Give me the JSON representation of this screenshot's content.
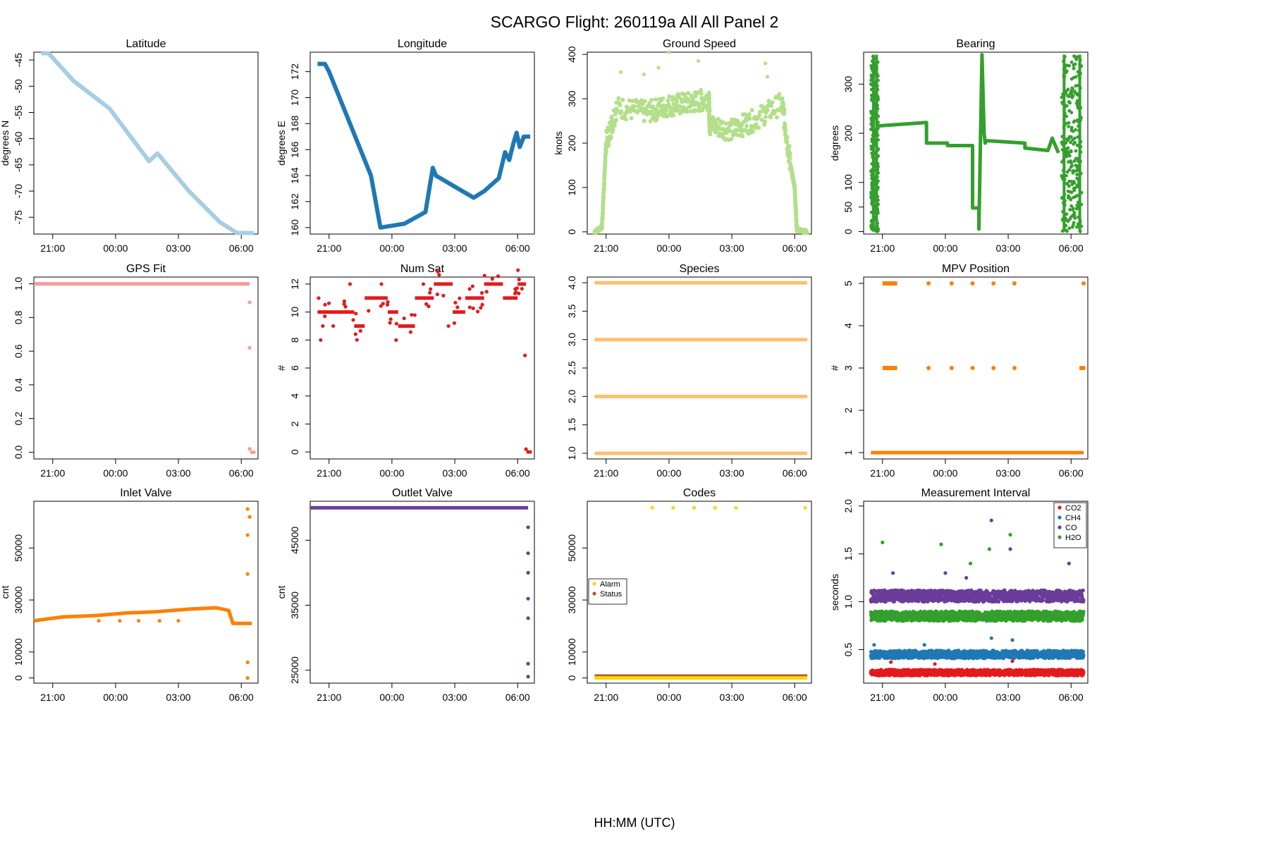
{
  "figure": {
    "title": "SCARGO Flight: 260119a  All All  Panel 2",
    "xlabel": "HH:MM (UTC)"
  },
  "chart_data": [
    {
      "id": "latitude",
      "type": "scatter",
      "title": "Latitude",
      "ylabel": "degrees N",
      "color": "#a6cee3",
      "xlim": [
        -3.9,
        6.8
      ],
      "xticks": [
        -3,
        0,
        3,
        6
      ],
      "xtick_labels": [
        "21:00",
        "00:00",
        "03:00",
        "06:00"
      ],
      "ylim": [
        -78.2,
        -43.5
      ],
      "yticks": [
        -45,
        -50,
        -55,
        -60,
        -65,
        -70,
        -75
      ],
      "series": [
        {
          "name": "Latitude",
          "x": [
            -3.55,
            -3.2,
            -2.0,
            -0.3,
            1.6,
            2.0,
            3.5,
            5.0,
            5.8,
            6.6
          ],
          "y": [
            -43.7,
            -43.7,
            -49.0,
            -54.2,
            -64.3,
            -62.8,
            -70.0,
            -76.0,
            -78.0,
            -78.0
          ],
          "mode": "line"
        }
      ]
    },
    {
      "id": "longitude",
      "type": "scatter",
      "title": "Longitude",
      "ylabel": "degrees E",
      "color": "#1f78b4",
      "xlim": [
        -3.9,
        6.8
      ],
      "xticks": [
        -3,
        0,
        3,
        6
      ],
      "xtick_labels": [
        "21:00",
        "00:00",
        "03:00",
        "06:00"
      ],
      "ylim": [
        159.5,
        173.5
      ],
      "yticks": [
        160,
        162,
        164,
        166,
        168,
        170,
        172
      ],
      "series": [
        {
          "name": "Longitude",
          "x": [
            -3.55,
            -3.2,
            -3.0,
            -1.0,
            -0.55,
            0.6,
            1.6,
            1.95,
            2.1,
            3.9,
            4.4,
            5.1,
            5.4,
            5.6,
            5.8,
            5.95,
            6.1,
            6.3,
            6.6
          ],
          "y": [
            172.6,
            172.6,
            172.0,
            164.0,
            160.0,
            160.3,
            161.2,
            164.6,
            164.0,
            162.3,
            162.8,
            163.8,
            165.8,
            165.2,
            166.5,
            167.3,
            166.2,
            167.0,
            167.0
          ],
          "mode": "line"
        }
      ]
    },
    {
      "id": "ground-speed",
      "type": "scatter",
      "title": "Ground Speed",
      "ylabel": "knots",
      "color": "#b2df8a",
      "xlim": [
        -3.9,
        6.8
      ],
      "xticks": [
        -3,
        0,
        3,
        6
      ],
      "xtick_labels": [
        "21:00",
        "00:00",
        "03:00",
        "06:00"
      ],
      "ylim": [
        -5,
        405
      ],
      "yticks": [
        0,
        100,
        200,
        300,
        400
      ],
      "series": [
        {
          "name": "Ground Speed",
          "x": [
            -3.55,
            -3.2,
            -3.0,
            -2.5,
            -1.0,
            0.0,
            1.0,
            1.9,
            1.95,
            3.0,
            4.0,
            5.4,
            5.8,
            6.0,
            6.1,
            6.6
          ],
          "y": [
            0,
            10,
            200,
            280,
            270,
            285,
            290,
            300,
            240,
            230,
            250,
            290,
            150,
            100,
            5,
            0
          ],
          "spread": 25,
          "outliers": [
            [
              -2.3,
              360
            ],
            [
              -1.2,
              355
            ],
            [
              -0.5,
              370
            ],
            [
              0.0,
              405
            ],
            [
              1.4,
              385
            ],
            [
              4.6,
              380
            ],
            [
              4.7,
              350
            ]
          ],
          "mode": "points"
        }
      ]
    },
    {
      "id": "bearing",
      "type": "scatter",
      "title": "Bearing",
      "ylabel": "degrees",
      "color": "#33a02c",
      "xlim": [
        -3.9,
        6.8
      ],
      "xticks": [
        -3,
        0,
        3,
        6
      ],
      "xtick_labels": [
        "21:00",
        "00:00",
        "03:00",
        "06:00"
      ],
      "ylim": [
        -5,
        365
      ],
      "yticks": [
        0,
        50,
        100,
        200,
        300
      ],
      "series": [
        {
          "name": "Bearing",
          "x": [
            -3.2,
            -0.9,
            -0.9,
            0.1,
            0.1,
            1.3,
            1.3,
            1.6,
            1.6,
            1.75,
            1.85,
            1.9,
            1.95,
            3.8,
            3.8,
            4.9,
            5.1,
            5.4
          ],
          "y": [
            215,
            222,
            180,
            180,
            175,
            175,
            48,
            48,
            5,
            360,
            200,
            180,
            185,
            180,
            170,
            165,
            190,
            160
          ],
          "mode": "line",
          "noise_bands": [
            [
              -3.55,
              -3.2,
              0,
              360
            ],
            [
              5.55,
              6.5,
              0,
              360
            ]
          ]
        }
      ]
    },
    {
      "id": "gps-fit",
      "type": "scatter",
      "title": "GPS Fit",
      "ylabel": "",
      "color": "#fb9a99",
      "xlim": [
        -3.9,
        6.8
      ],
      "xticks": [
        -3,
        0,
        3,
        6
      ],
      "xtick_labels": [
        "21:00",
        "00:00",
        "03:00",
        "06:00"
      ],
      "ylim": [
        -0.04,
        1.04
      ],
      "yticks": [
        0.0,
        0.2,
        0.4,
        0.6,
        0.8,
        1.0
      ],
      "series": [
        {
          "name": "GPS Fit",
          "x": [
            -3.9,
            6.4
          ],
          "y": [
            1.0,
            1.0
          ],
          "mode": "line",
          "outliers": [
            [
              6.4,
              0.89
            ],
            [
              6.4,
              0.62
            ],
            [
              6.4,
              0.02
            ],
            [
              6.5,
              0.0
            ],
            [
              6.6,
              0.0
            ]
          ]
        }
      ]
    },
    {
      "id": "num-sat",
      "type": "scatter",
      "title": "Num Sat",
      "ylabel": "#",
      "color": "#e31a1c",
      "xlim": [
        -3.9,
        6.8
      ],
      "xticks": [
        -3,
        0,
        3,
        6
      ],
      "xtick_labels": [
        "21:00",
        "00:00",
        "03:00",
        "06:00"
      ],
      "ylim": [
        -0.5,
        12.5
      ],
      "yticks": [
        0,
        2,
        4,
        6,
        8,
        10,
        12
      ],
      "series": [
        {
          "name": "Num Sat",
          "x": [
            -3.55,
            -2.3,
            -1.8,
            -1.3,
            -0.2,
            0.3,
            1.1,
            2.0,
            2.9,
            3.5,
            3.9,
            4.4,
            5.3,
            6.0,
            6.4
          ],
          "y": [
            10,
            10,
            9,
            11,
            10,
            9,
            11,
            12,
            10,
            11,
            11,
            12,
            11,
            12,
            11
          ],
          "mode": "steps",
          "outliers": [
            [
              -3.4,
              8
            ],
            [
              -3.3,
              9
            ],
            [
              -2.8,
              9
            ],
            [
              -2.0,
              12
            ],
            [
              -0.5,
              12
            ],
            [
              0.2,
              8
            ],
            [
              1.5,
              12
            ],
            [
              2.7,
              9
            ],
            [
              6.35,
              6.9
            ],
            [
              6.4,
              0.2
            ],
            [
              6.5,
              0
            ],
            [
              6.6,
              0
            ]
          ]
        }
      ]
    },
    {
      "id": "species",
      "type": "scatter",
      "title": "Species",
      "ylabel": "",
      "color": "#fdbf6f",
      "xlim": [
        -3.9,
        6.8
      ],
      "xticks": [
        -3,
        0,
        3,
        6
      ],
      "xtick_labels": [
        "21:00",
        "00:00",
        "03:00",
        "06:00"
      ],
      "ylim": [
        0.9,
        4.1
      ],
      "yticks": [
        1.0,
        1.5,
        2.0,
        2.5,
        3.0,
        3.5,
        4.0
      ],
      "levels": [
        1,
        2,
        3,
        4
      ],
      "x_range": [
        -3.55,
        6.6
      ]
    },
    {
      "id": "mpv-position",
      "type": "scatter",
      "title": "MPV Position",
      "ylabel": "#",
      "color": "#ff7f00",
      "xlim": [
        -3.9,
        6.8
      ],
      "xticks": [
        -3,
        0,
        3,
        6
      ],
      "xtick_labels": [
        "21:00",
        "00:00",
        "03:00",
        "06:00"
      ],
      "ylim": [
        0.85,
        5.15
      ],
      "yticks": [
        1,
        2,
        3,
        4,
        5
      ],
      "series": [
        {
          "name": "MPV Position",
          "x": [
            -3.55,
            6.6
          ],
          "y": [
            1,
            1
          ],
          "mode": "line",
          "clusters": [
            [
              -0.8,
              5
            ],
            [
              -0.8,
              3
            ],
            [
              0.3,
              5
            ],
            [
              0.3,
              3
            ],
            [
              1.3,
              5
            ],
            [
              1.3,
              3
            ],
            [
              2.3,
              5
            ],
            [
              2.3,
              3
            ],
            [
              3.3,
              5
            ],
            [
              3.3,
              3
            ],
            [
              6.6,
              5
            ],
            [
              6.6,
              3
            ]
          ],
          "blocks": [
            [
              -3.0,
              -2.3,
              5
            ],
            [
              -3.0,
              -2.3,
              3
            ],
            [
              6.4,
              6.6,
              3
            ]
          ]
        }
      ]
    },
    {
      "id": "inlet-valve",
      "type": "scatter",
      "title": "Inlet Valve",
      "ylabel": "cnt",
      "color": "#ff7f00",
      "xlim": [
        -3.9,
        6.8
      ],
      "xticks": [
        -3,
        0,
        3,
        6
      ],
      "xtick_labels": [
        "21:00",
        "00:00",
        "03:00",
        "06:00"
      ],
      "ylim": [
        -2000,
        68000
      ],
      "yticks": [
        0,
        10000,
        30000,
        50000
      ],
      "series": [
        {
          "name": "Inlet Valve",
          "x": [
            -3.9,
            -2.5,
            -1.0,
            0.5,
            2.0,
            3.5,
            4.8,
            5.4,
            5.6,
            6.5
          ],
          "y": [
            22000,
            23500,
            24000,
            25000,
            25500,
            26500,
            27000,
            26000,
            21000,
            21000
          ],
          "mode": "line",
          "outliers": [
            [
              -0.8,
              22000
            ],
            [
              0.2,
              22000
            ],
            [
              1.1,
              22000
            ],
            [
              2.1,
              22000
            ],
            [
              3.0,
              22000
            ],
            [
              6.3,
              0
            ],
            [
              6.3,
              6000
            ],
            [
              6.3,
              40000
            ],
            [
              6.3,
              55000
            ],
            [
              6.3,
              65000
            ],
            [
              6.4,
              62000
            ]
          ]
        }
      ]
    },
    {
      "id": "outlet-valve",
      "type": "scatter",
      "title": "Outlet Valve",
      "ylabel": "cnt",
      "color": "#6a3d9a",
      "xlim": [
        -3.9,
        6.8
      ],
      "xticks": [
        -3,
        0,
        3,
        6
      ],
      "xtick_labels": [
        "21:00",
        "00:00",
        "03:00",
        "06:00"
      ],
      "ylim": [
        23000,
        51000
      ],
      "yticks": [
        25000,
        35000,
        45000
      ],
      "series": [
        {
          "name": "Outlet Valve",
          "x": [
            -3.9,
            6.5
          ],
          "y": [
            50000,
            50000
          ],
          "mode": "line",
          "outliers": [
            [
              6.5,
              47000
            ],
            [
              6.5,
              43000
            ],
            [
              6.5,
              40000
            ],
            [
              6.5,
              36000
            ],
            [
              6.5,
              33000
            ],
            [
              6.5,
              26000
            ],
            [
              6.5,
              24000
            ]
          ]
        }
      ]
    },
    {
      "id": "codes",
      "type": "scatter",
      "title": "Codes",
      "ylabel": "",
      "color": "#ffd700",
      "xlim": [
        -3.9,
        6.8
      ],
      "xticks": [
        -3,
        0,
        3,
        6
      ],
      "xtick_labels": [
        "21:00",
        "00:00",
        "03:00",
        "06:00"
      ],
      "ylim": [
        -2000,
        68000
      ],
      "yticks": [
        0,
        10000,
        30000,
        50000
      ],
      "legend": {
        "position": "middle-left",
        "entries": [
          {
            "label": "Alarm",
            "color": "#ffd700"
          },
          {
            "label": "Status",
            "color": "#b15928"
          }
        ]
      },
      "series": [
        {
          "name": "Status",
          "color": "#b15928",
          "x": [
            -3.55,
            6.6
          ],
          "y": [
            700,
            700
          ],
          "mode": "line"
        },
        {
          "name": "Alarm",
          "color": "#ffd700",
          "x": [
            -3.55,
            6.6
          ],
          "y": [
            0,
            0
          ],
          "mode": "line",
          "outliers": [
            [
              -0.8,
              65500
            ],
            [
              0.2,
              65500
            ],
            [
              1.2,
              65500
            ],
            [
              2.2,
              65500
            ],
            [
              3.2,
              65500
            ],
            [
              6.5,
              65500
            ]
          ]
        }
      ]
    },
    {
      "id": "measurement-interval",
      "type": "scatter",
      "title": "Measurement Interval",
      "ylabel": "seconds",
      "color": "#333333",
      "xlim": [
        -3.9,
        6.8
      ],
      "xticks": [
        -3,
        0,
        3,
        6
      ],
      "xtick_labels": [
        "21:00",
        "00:00",
        "03:00",
        "06:00"
      ],
      "ylim": [
        0.15,
        2.05
      ],
      "yticks": [
        0.5,
        1.0,
        1.5,
        2.0
      ],
      "legend": {
        "position": "top-right",
        "entries": [
          {
            "label": "CO2",
            "color": "#e31a1c"
          },
          {
            "label": "CH4",
            "color": "#1f78b4"
          },
          {
            "label": "CO",
            "color": "#6a3d9a"
          },
          {
            "label": "H2O",
            "color": "#33a02c"
          }
        ]
      },
      "series": [
        {
          "name": "CO",
          "color": "#6a3d9a",
          "level": 1.06,
          "band": 0.06,
          "x_range": [
            -3.55,
            6.6
          ],
          "outliers": [
            [
              -2.5,
              1.3
            ],
            [
              0.0,
              1.3
            ],
            [
              1.0,
              1.25
            ],
            [
              2.2,
              1.85
            ],
            [
              3.1,
              1.55
            ],
            [
              5.9,
              1.4
            ]
          ]
        },
        {
          "name": "H2O",
          "color": "#33a02c",
          "level": 0.85,
          "band": 0.05,
          "x_range": [
            -3.55,
            6.6
          ],
          "outliers": [
            [
              -3.0,
              1.62
            ],
            [
              -0.2,
              1.6
            ],
            [
              1.2,
              1.4
            ],
            [
              2.1,
              1.55
            ],
            [
              3.1,
              1.7
            ]
          ]
        },
        {
          "name": "CH4",
          "color": "#1f78b4",
          "level": 0.45,
          "band": 0.04,
          "x_range": [
            -3.55,
            6.6
          ],
          "outliers": [
            [
              -3.4,
              0.55
            ],
            [
              -1.0,
              0.55
            ],
            [
              2.2,
              0.62
            ],
            [
              3.2,
              0.6
            ]
          ]
        },
        {
          "name": "CO2",
          "color": "#e31a1c",
          "level": 0.26,
          "band": 0.03,
          "x_range": [
            -3.55,
            6.6
          ],
          "outliers": [
            [
              -2.6,
              0.37
            ],
            [
              -0.5,
              0.35
            ],
            [
              3.2,
              0.38
            ]
          ]
        }
      ]
    }
  ]
}
